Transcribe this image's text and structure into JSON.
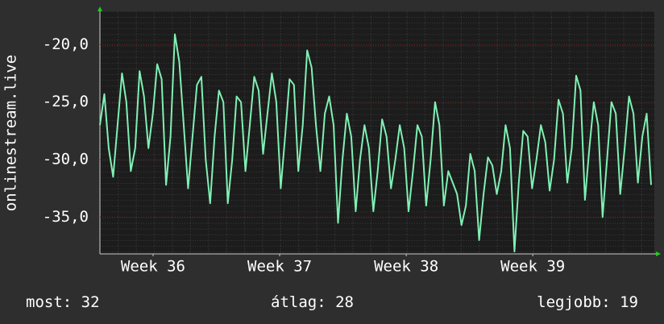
{
  "chart_data": {
    "type": "line",
    "ylabel": "onlinestream.live",
    "ylim": [
      -38.2,
      -17.1
    ],
    "yticks": [
      {
        "value": -20,
        "label": "-20,0"
      },
      {
        "value": -25,
        "label": "-25,0"
      },
      {
        "value": -30,
        "label": "-30,0"
      },
      {
        "value": -35,
        "label": "-35,0"
      }
    ],
    "xlim": [
      35.58,
      39.96
    ],
    "xticks": [
      {
        "value": 36,
        "label": "Week 36"
      },
      {
        "value": 37,
        "label": "Week 37"
      },
      {
        "value": 38,
        "label": "Week 38"
      },
      {
        "value": 39,
        "label": "Week 39"
      }
    ],
    "grid": true,
    "color": "#80f0b4",
    "values": [
      -27,
      -24.3,
      -29,
      -31.5,
      -27,
      -22.5,
      -25,
      -31,
      -29,
      -22.3,
      -24.5,
      -29,
      -26,
      -21.7,
      -23,
      -32.2,
      -28,
      -19.1,
      -21.5,
      -27,
      -32.5,
      -28,
      -23.5,
      -22.8,
      -30,
      -33.8,
      -28,
      -24,
      -25,
      -33.8,
      -30,
      -24.5,
      -25,
      -31,
      -27,
      -22.8,
      -24,
      -29.5,
      -26,
      -22.5,
      -25,
      -32.5,
      -28,
      -23,
      -23.5,
      -31,
      -27,
      -20.5,
      -22,
      -27,
      -31,
      -26,
      -24.5,
      -27,
      -35.5,
      -30,
      -26,
      -28,
      -34.5,
      -30,
      -27,
      -29,
      -34.5,
      -31,
      -26.5,
      -28,
      -32.5,
      -30,
      -27,
      -29,
      -34.5,
      -31,
      -27,
      -28,
      -34,
      -30,
      -25,
      -27,
      -34,
      -31,
      -32,
      -33,
      -35.7,
      -34,
      -29.5,
      -31,
      -37,
      -33,
      -29.8,
      -30.5,
      -33,
      -31,
      -27,
      -29,
      -38,
      -32,
      -27.5,
      -28,
      -32.5,
      -30,
      -27,
      -28.5,
      -32.7,
      -30,
      -24.8,
      -26,
      -32,
      -29,
      -22.7,
      -24,
      -33.5,
      -29,
      -25,
      -27,
      -35,
      -30,
      -25,
      -26,
      -33,
      -29,
      -24.5,
      -26,
      -32,
      -28,
      -26,
      -32.2
    ],
    "stats": [
      {
        "label": "most:",
        "value": 32
      },
      {
        "label": "átlag:",
        "value": 28
      },
      {
        "label": "legjobb:",
        "value": 19
      }
    ]
  }
}
